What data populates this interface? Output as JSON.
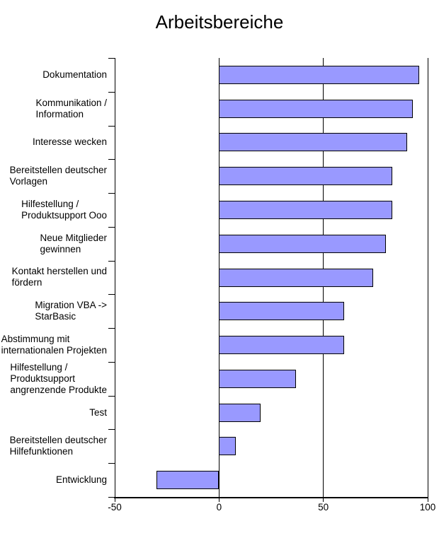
{
  "page": {
    "background_color": "#ffffff",
    "text_color": "#000000"
  },
  "chart_data": {
    "type": "bar",
    "orientation": "horizontal",
    "title": "Arbeitsbereiche",
    "categories": [
      "Dokumentation",
      "Kommunikation / Information",
      "Interesse wecken",
      "Bereitstellen deutscher Vorlagen",
      "Hilfestellung / Produktsupport Ooo",
      "Neue Mitglieder gewinnen",
      "Kontakt herstellen und fördern",
      "Migration VBA -> StarBasic",
      "Abstimmung mit internationalen Projekten",
      "Hilfestellung / Produktsupport angrenzende Produkte",
      "Test",
      "Bereitstellen deutscher Hilfefunktionen",
      "Entwicklung"
    ],
    "label_lines": [
      [
        "Dokumentation"
      ],
      [
        "Kommunikation /",
        "Information"
      ],
      [
        "Interesse wecken"
      ],
      [
        "Bereitstellen deutscher",
        "Vorlagen"
      ],
      [
        "Hilfestellung /",
        "Produktsupport Ooo"
      ],
      [
        "Neue Mitglieder",
        "gewinnen"
      ],
      [
        "Kontakt herstellen und",
        "fördern"
      ],
      [
        "Migration VBA ->",
        "StarBasic"
      ],
      [
        "Abstimmung mit",
        "internationalen Projekten"
      ],
      [
        "Hilfestellung /",
        "Produktsupport",
        "angrenzende Produkte"
      ],
      [
        "Test"
      ],
      [
        "Bereitstellen deutscher",
        "Hilfefunktionen"
      ],
      [
        "Entwicklung"
      ]
    ],
    "values": [
      96,
      93,
      90,
      83,
      83,
      80,
      74,
      60,
      60,
      37,
      20,
      8,
      -30
    ],
    "xlim": [
      -50,
      100
    ],
    "x_ticks": [
      -50,
      0,
      50,
      100
    ],
    "xlabel": "",
    "ylabel": "",
    "legend": "none",
    "grid": true,
    "bar_color": "#9999ff",
    "bar_border_color": "#000000",
    "axis_color": "#000000"
  }
}
